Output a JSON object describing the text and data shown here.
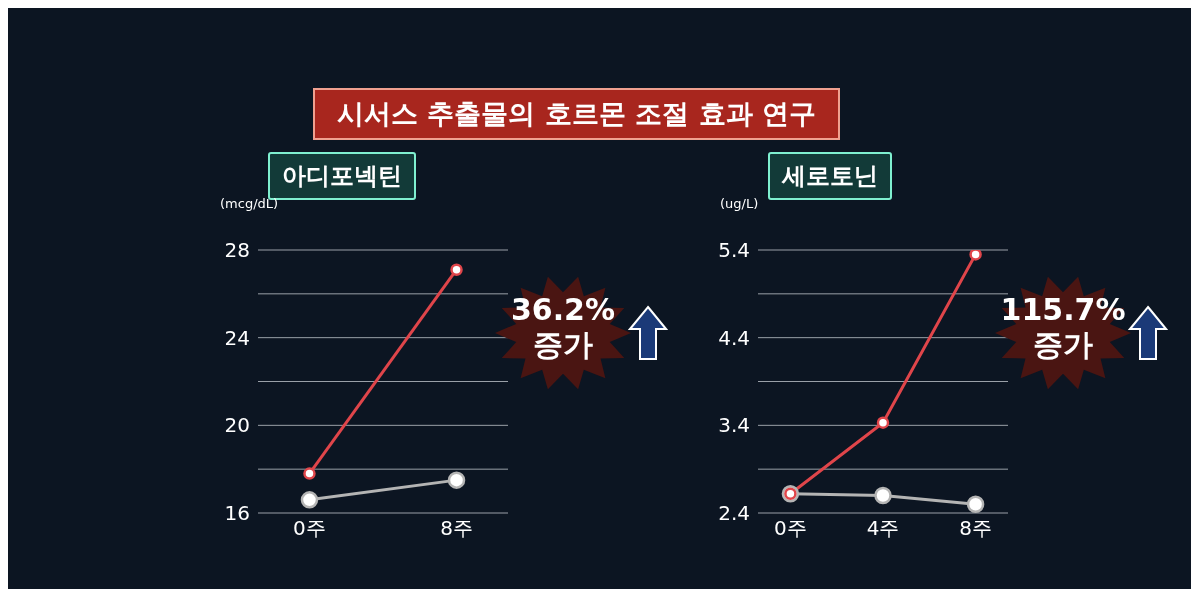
{
  "chart_data": [
    {
      "type": "line",
      "title": "시서스 추출물의 호르몬 조절 효과 연구",
      "subtitle": "아디포넥틴",
      "ylabel": "(mcg/dL)",
      "categories": [
        "0주",
        "8주"
      ],
      "series": [
        {
          "color": "#e0454a",
          "values": [
            17.8,
            27.1
          ]
        },
        {
          "color": "#b4b4b4",
          "values": [
            16.6,
            17.5
          ]
        }
      ],
      "ylim": [
        16,
        28
      ],
      "yticks": [
        16,
        {
          "value": 18,
          "label": null
        },
        20,
        {
          "value": 22,
          "label": null
        },
        24,
        {
          "value": 26,
          "label": null
        },
        28
      ],
      "grid": "y",
      "marker": "circle",
      "line_style": "solid",
      "legend": false,
      "annotations": [
        "36.2%\n증가"
      ]
    },
    {
      "type": "line",
      "subtitle": "세로토닌",
      "ylabel": "(ug/L)",
      "categories": [
        "0주",
        "4주",
        "8주"
      ],
      "series": [
        {
          "color": "#e0454a",
          "values": [
            2.62,
            3.43,
            5.35
          ]
        },
        {
          "color": "#b4b4b4",
          "values": [
            2.62,
            2.6,
            2.5
          ]
        }
      ],
      "ylim": [
        2.4,
        5.4
      ],
      "yticks": [
        2.4,
        {
          "value": 2.9,
          "label": null
        },
        3.4,
        {
          "value": 3.9,
          "label": null
        },
        4.4,
        {
          "value": 4.9,
          "label": null
        },
        5.4
      ],
      "grid": "y",
      "marker": "circle",
      "line_style": "solid",
      "legend": false,
      "annotations": [
        "115.7%\n증가"
      ]
    }
  ]
}
